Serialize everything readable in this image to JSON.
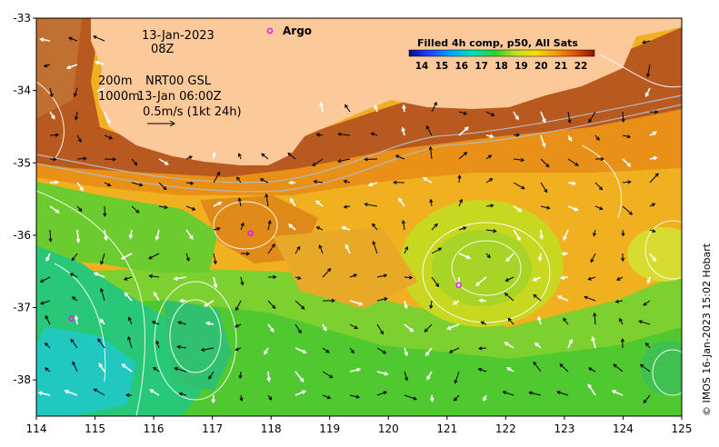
{
  "map": {
    "timestamp_date": "13-Jan-2023",
    "timestamp_hour": "08Z",
    "depth_200": "200m",
    "depth_1000": "1000m",
    "gsl_product": "NRT00 GSL",
    "gsl_time": "13-Jan 06:00Z",
    "vector_scale": "0.5m/s (1kt 24h)",
    "argo_label": "Argo",
    "colorbar_title": "Filled 4h comp, p50, All Sats",
    "colorbar_ticks": [
      "14",
      "15",
      "16",
      "17",
      "18",
      "19",
      "20",
      "21",
      "22"
    ],
    "credit": "© IMOS 16-Jan-2023 15:02 Hobart",
    "x_ticks": [
      "114",
      "115",
      "116",
      "117",
      "118",
      "119",
      "120",
      "121",
      "122",
      "123",
      "124",
      "125"
    ],
    "y_ticks": [
      "-33",
      "-34",
      "-35",
      "-36",
      "-37",
      "-38"
    ],
    "lon_range": [
      114,
      125
    ],
    "lat_range": [
      -38.5,
      -33
    ],
    "argo_floats": [
      {
        "lon": 117.65,
        "lat": -35.97
      },
      {
        "lon": 121.2,
        "lat": -36.69
      },
      {
        "lon": 114.6,
        "lat": -37.15
      }
    ],
    "colors": {
      "land": "#FCC99B",
      "frame": "#000000",
      "argo": "#E020E0",
      "contour": "#FFFFFF",
      "isobath": "#B0B0B0"
    }
  }
}
